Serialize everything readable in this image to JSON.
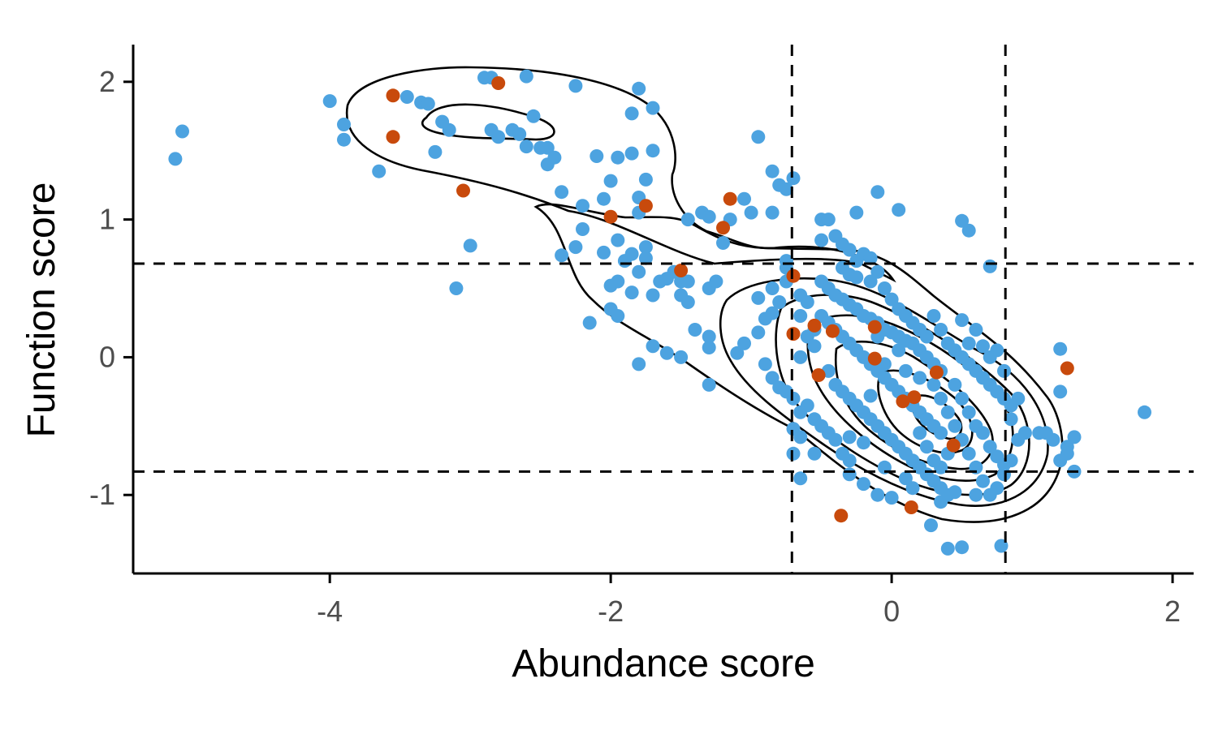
{
  "chart_data": {
    "type": "scatter",
    "xlabel": "Abundance score",
    "ylabel": "Function score",
    "xlim": [
      -5.4,
      2.15
    ],
    "ylim": [
      -1.57,
      2.27
    ],
    "x_ticks": [
      -4,
      -2,
      0,
      2
    ],
    "y_ticks": [
      -1,
      0,
      1,
      2
    ],
    "x_tick_labels": [
      "-4",
      "-2",
      "0",
      "2"
    ],
    "y_tick_labels": [
      "-1",
      "0",
      "1",
      "2"
    ],
    "grid": false,
    "legend": "none",
    "thresholds": {
      "x": [
        -0.71,
        0.81
      ],
      "y": [
        0.68,
        -0.83
      ]
    },
    "colors": {
      "blue": "#4DA3E0",
      "orange": "#C84A0C",
      "line": "#000000"
    },
    "series": [
      {
        "color": "#4DA3E0",
        "points": [
          [
            -5.1,
            1.44
          ],
          [
            -5.05,
            1.64
          ],
          [
            -4.0,
            1.86
          ],
          [
            -3.9,
            1.69
          ],
          [
            -3.9,
            1.58
          ],
          [
            -3.65,
            1.35
          ],
          [
            -3.45,
            1.89
          ],
          [
            -3.35,
            1.85
          ],
          [
            -3.3,
            1.84
          ],
          [
            -3.2,
            1.71
          ],
          [
            -3.15,
            1.65
          ],
          [
            -3.25,
            1.49
          ],
          [
            -3.1,
            0.5
          ],
          [
            -3.0,
            0.81
          ],
          [
            -2.9,
            2.03
          ],
          [
            -2.85,
            2.03
          ],
          [
            -2.85,
            1.65
          ],
          [
            -2.8,
            1.6
          ],
          [
            -2.7,
            1.65
          ],
          [
            -2.65,
            1.62
          ],
          [
            -2.6,
            1.53
          ],
          [
            -2.6,
            2.04
          ],
          [
            -2.55,
            1.75
          ],
          [
            -2.5,
            1.52
          ],
          [
            -2.45,
            1.52
          ],
          [
            -2.45,
            1.4
          ],
          [
            -2.4,
            1.45
          ],
          [
            -2.35,
            1.2
          ],
          [
            -2.35,
            0.74
          ],
          [
            -2.25,
            0.8
          ],
          [
            -2.2,
            0.93
          ],
          [
            -2.2,
            1.1
          ],
          [
            -2.25,
            1.97
          ],
          [
            -2.05,
            1.15
          ],
          [
            -2.1,
            1.46
          ],
          [
            -2.0,
            1.28
          ],
          [
            -1.95,
            1.45
          ],
          [
            -1.85,
            1.48
          ],
          [
            -1.85,
            1.77
          ],
          [
            -1.8,
            1.16
          ],
          [
            -1.75,
            1.29
          ],
          [
            -1.8,
            1.05
          ],
          [
            -1.8,
            1.95
          ],
          [
            -1.7,
            1.81
          ],
          [
            -1.7,
            1.5
          ],
          [
            -2.05,
            0.76
          ],
          [
            -1.95,
            0.85
          ],
          [
            -1.9,
            0.7
          ],
          [
            -1.85,
            0.75
          ],
          [
            -1.75,
            0.8
          ],
          [
            -1.75,
            0.72
          ],
          [
            -1.8,
            0.62
          ],
          [
            -1.95,
            0.55
          ],
          [
            -2.0,
            0.52
          ],
          [
            -1.85,
            0.47
          ],
          [
            -1.7,
            0.45
          ],
          [
            -1.65,
            0.55
          ],
          [
            -1.6,
            0.57
          ],
          [
            -2.0,
            0.35
          ],
          [
            -1.95,
            0.3
          ],
          [
            -2.15,
            0.25
          ],
          [
            -1.55,
            0.62
          ],
          [
            -1.5,
            0.55
          ],
          [
            -1.45,
            0.55
          ],
          [
            -1.5,
            0.45
          ],
          [
            -1.45,
            0.4
          ],
          [
            -1.3,
            0.5
          ],
          [
            -1.25,
            0.55
          ],
          [
            -1.4,
            0.2
          ],
          [
            -1.3,
            0.15
          ],
          [
            -1.7,
            0.08
          ],
          [
            -1.6,
            0.03
          ],
          [
            -1.8,
            -0.05
          ],
          [
            -1.5,
            0.0
          ],
          [
            -1.3,
            0.07
          ],
          [
            -1.3,
            -0.2
          ],
          [
            -1.45,
            1.0
          ],
          [
            -1.35,
            1.05
          ],
          [
            -1.3,
            1.02
          ],
          [
            -1.2,
            0.83
          ],
          [
            -1.15,
            1.0
          ],
          [
            -1.05,
            1.15
          ],
          [
            -1.0,
            1.05
          ],
          [
            -0.95,
            1.6
          ],
          [
            -0.85,
            1.35
          ],
          [
            -0.8,
            1.25
          ],
          [
            -0.75,
            1.22
          ],
          [
            -0.7,
            1.3
          ],
          [
            -0.85,
            1.05
          ],
          [
            -1.1,
            0.03
          ],
          [
            -1.05,
            0.1
          ],
          [
            -0.95,
            0.18
          ],
          [
            -0.9,
            0.28
          ],
          [
            -0.85,
            0.32
          ],
          [
            -0.8,
            0.4
          ],
          [
            -0.95,
            0.43
          ],
          [
            -0.85,
            0.5
          ],
          [
            -0.75,
            0.55
          ],
          [
            -0.75,
            0.65
          ],
          [
            -0.75,
            0.7
          ],
          [
            -0.65,
            0.45
          ],
          [
            -0.6,
            0.4
          ],
          [
            -0.65,
            0.3
          ],
          [
            -0.55,
            0.2
          ],
          [
            -0.6,
            0.15
          ],
          [
            -0.55,
            0.08
          ],
          [
            -0.65,
            0.0
          ],
          [
            -0.9,
            -0.05
          ],
          [
            -0.85,
            -0.15
          ],
          [
            -0.8,
            -0.22
          ],
          [
            -0.75,
            -0.25
          ],
          [
            -0.7,
            -0.3
          ],
          [
            -0.6,
            -0.35
          ],
          [
            -0.65,
            -0.4
          ],
          [
            -0.55,
            -0.45
          ],
          [
            -0.5,
            -0.5
          ],
          [
            -0.45,
            -0.55
          ],
          [
            -0.4,
            -0.6
          ],
          [
            -0.35,
            -0.7
          ],
          [
            -0.3,
            -0.75
          ],
          [
            -0.7,
            -0.52
          ],
          [
            -0.65,
            -0.58
          ],
          [
            -0.7,
            -0.7
          ],
          [
            -0.65,
            -0.88
          ],
          [
            -0.55,
            -0.7
          ],
          [
            -0.5,
            1.0
          ],
          [
            -0.45,
            1.0
          ],
          [
            -0.5,
            0.85
          ],
          [
            -0.4,
            0.88
          ],
          [
            -0.35,
            0.82
          ],
          [
            -0.3,
            0.78
          ],
          [
            -0.25,
            0.7
          ],
          [
            -0.2,
            0.75
          ],
          [
            -0.15,
            0.72
          ],
          [
            -0.35,
            0.65
          ],
          [
            -0.3,
            0.6
          ],
          [
            -0.25,
            0.58
          ],
          [
            -0.15,
            0.55
          ],
          [
            -0.1,
            0.62
          ],
          [
            -0.05,
            0.5
          ],
          [
            -0.25,
            1.05
          ],
          [
            -0.1,
            1.2
          ],
          [
            0.05,
            1.07
          ],
          [
            -0.5,
            0.55
          ],
          [
            -0.45,
            0.5
          ],
          [
            -0.4,
            0.45
          ],
          [
            -0.35,
            0.42
          ],
          [
            -0.3,
            0.38
          ],
          [
            -0.25,
            0.35
          ],
          [
            -0.2,
            0.3
          ],
          [
            -0.15,
            0.28
          ],
          [
            -0.1,
            0.25
          ],
          [
            -0.05,
            0.2
          ],
          [
            0.0,
            0.18
          ],
          [
            0.05,
            0.15
          ],
          [
            0.1,
            0.12
          ],
          [
            0.15,
            0.1
          ],
          [
            0.2,
            0.05
          ],
          [
            0.25,
            0.0
          ],
          [
            0.3,
            -0.05
          ],
          [
            0.35,
            -0.1
          ],
          [
            -0.5,
            0.3
          ],
          [
            -0.45,
            0.25
          ],
          [
            -0.4,
            0.2
          ],
          [
            -0.35,
            0.15
          ],
          [
            -0.3,
            0.1
          ],
          [
            -0.25,
            0.05
          ],
          [
            -0.2,
            0.0
          ],
          [
            -0.15,
            -0.05
          ],
          [
            -0.1,
            -0.1
          ],
          [
            -0.05,
            -0.15
          ],
          [
            0.0,
            -0.2
          ],
          [
            0.05,
            -0.25
          ],
          [
            0.1,
            -0.3
          ],
          [
            0.15,
            -0.35
          ],
          [
            0.2,
            -0.4
          ],
          [
            0.25,
            -0.45
          ],
          [
            0.3,
            -0.5
          ],
          [
            0.35,
            -0.55
          ],
          [
            -0.45,
            -0.1
          ],
          [
            -0.4,
            -0.2
          ],
          [
            -0.35,
            -0.25
          ],
          [
            -0.3,
            -0.3
          ],
          [
            -0.25,
            -0.35
          ],
          [
            -0.2,
            -0.4
          ],
          [
            -0.15,
            -0.45
          ],
          [
            -0.1,
            -0.5
          ],
          [
            -0.05,
            -0.55
          ],
          [
            0.0,
            -0.6
          ],
          [
            0.05,
            -0.65
          ],
          [
            0.1,
            -0.7
          ],
          [
            0.15,
            -0.75
          ],
          [
            0.2,
            -0.8
          ],
          [
            0.25,
            -0.85
          ],
          [
            0.3,
            -0.9
          ],
          [
            0.35,
            -0.95
          ],
          [
            0.4,
            -1.0
          ],
          [
            0.0,
            0.42
          ],
          [
            0.05,
            0.35
          ],
          [
            0.1,
            0.3
          ],
          [
            0.15,
            0.25
          ],
          [
            0.2,
            0.2
          ],
          [
            0.25,
            0.15
          ],
          [
            0.3,
            0.3
          ],
          [
            0.35,
            0.2
          ],
          [
            0.4,
            0.1
          ],
          [
            0.45,
            0.05
          ],
          [
            0.5,
            0.0
          ],
          [
            0.55,
            -0.05
          ],
          [
            0.6,
            -0.1
          ],
          [
            0.65,
            -0.15
          ],
          [
            0.7,
            -0.2
          ],
          [
            0.75,
            -0.25
          ],
          [
            0.8,
            -0.3
          ],
          [
            0.85,
            -0.35
          ],
          [
            0.3,
            -0.2
          ],
          [
            0.35,
            -0.3
          ],
          [
            0.4,
            -0.4
          ],
          [
            0.45,
            -0.5
          ],
          [
            0.5,
            -0.6
          ],
          [
            0.55,
            -0.7
          ],
          [
            0.6,
            -0.8
          ],
          [
            0.65,
            -0.9
          ],
          [
            0.7,
            -1.0
          ],
          [
            0.75,
            -0.95
          ],
          [
            0.8,
            -0.85
          ],
          [
            0.85,
            -0.75
          ],
          [
            0.9,
            -0.6
          ],
          [
            0.95,
            -0.55
          ],
          [
            0.85,
            -0.45
          ],
          [
            0.9,
            -0.3
          ],
          [
            0.8,
            -0.1
          ],
          [
            0.75,
            0.05
          ],
          [
            0.5,
            0.27
          ],
          [
            0.55,
            0.1
          ],
          [
            0.6,
            0.2
          ],
          [
            0.65,
            0.08
          ],
          [
            0.7,
            0.0
          ],
          [
            0.45,
            -0.2
          ],
          [
            0.5,
            -0.3
          ],
          [
            0.55,
            -0.4
          ],
          [
            0.6,
            -0.5
          ],
          [
            0.65,
            -0.55
          ],
          [
            0.7,
            -0.65
          ],
          [
            0.75,
            -0.72
          ],
          [
            0.8,
            -0.78
          ],
          [
            0.4,
            -0.7
          ],
          [
            0.35,
            -0.8
          ],
          [
            0.3,
            -0.75
          ],
          [
            0.25,
            -0.65
          ],
          [
            0.2,
            -0.55
          ],
          [
            1.05,
            -0.55
          ],
          [
            1.1,
            -0.55
          ],
          [
            1.15,
            -0.6
          ],
          [
            1.2,
            -0.75
          ],
          [
            1.25,
            -0.65
          ],
          [
            1.3,
            -0.58
          ],
          [
            1.3,
            -0.83
          ],
          [
            1.2,
            -0.25
          ],
          [
            1.2,
            0.06
          ],
          [
            1.25,
            -0.7
          ],
          [
            0.5,
            0.99
          ],
          [
            0.55,
            0.92
          ],
          [
            0.7,
            0.66
          ],
          [
            0.78,
            -1.37
          ],
          [
            0.5,
            -1.38
          ],
          [
            0.4,
            -1.39
          ],
          [
            0.28,
            -1.22
          ],
          [
            0.0,
            -1.02
          ],
          [
            -0.1,
            -1.0
          ],
          [
            -0.2,
            -0.92
          ],
          [
            -0.3,
            -0.85
          ],
          [
            -0.05,
            -0.8
          ],
          [
            0.1,
            -0.88
          ],
          [
            0.15,
            -0.95
          ],
          [
            0.35,
            -1.05
          ],
          [
            0.45,
            -0.98
          ],
          [
            0.6,
            -1.0
          ],
          [
            1.8,
            -0.4
          ],
          [
            -0.2,
            -0.62
          ],
          [
            -0.3,
            -0.58
          ],
          [
            -0.15,
            -0.28
          ],
          [
            -0.05,
            -0.05
          ],
          [
            0.1,
            -0.1
          ],
          [
            0.2,
            -0.15
          ],
          [
            0.05,
            0.05
          ],
          [
            -0.1,
            0.15
          ]
        ]
      },
      {
        "color": "#C84A0C",
        "points": [
          [
            -3.55,
            1.9
          ],
          [
            -3.55,
            1.6
          ],
          [
            -2.8,
            1.99
          ],
          [
            -3.05,
            1.21
          ],
          [
            -2.0,
            1.02
          ],
          [
            -1.75,
            1.1
          ],
          [
            -1.5,
            0.63
          ],
          [
            -1.15,
            1.15
          ],
          [
            -1.2,
            0.94
          ],
          [
            -0.7,
            0.59
          ],
          [
            -0.7,
            0.17
          ],
          [
            -0.55,
            0.23
          ],
          [
            -0.42,
            0.19
          ],
          [
            -0.52,
            -0.13
          ],
          [
            -0.12,
            0.22
          ],
          [
            -0.12,
            -0.01
          ],
          [
            0.08,
            -0.32
          ],
          [
            0.16,
            -0.29
          ],
          [
            0.32,
            -0.11
          ],
          [
            0.44,
            -0.64
          ],
          [
            0.14,
            -1.09
          ],
          [
            -0.36,
            -1.15
          ],
          [
            1.25,
            -0.08
          ]
        ]
      }
    ]
  }
}
